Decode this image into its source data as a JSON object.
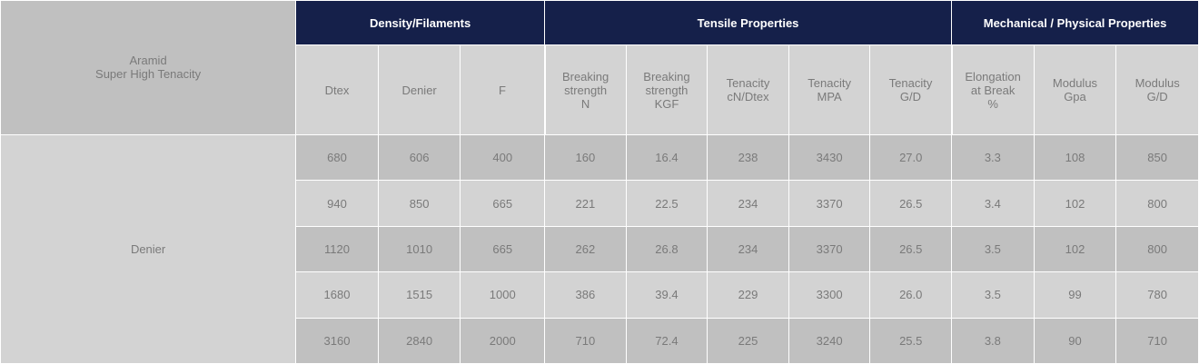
{
  "table": {
    "corner": {
      "line1": "Aramid",
      "line2": "Super High Tenacity"
    },
    "groups": {
      "density": "Density/Filaments",
      "tensile": "Tensile Properties",
      "mechanical": "Mechanical / Physical Properties"
    },
    "columns": [
      [
        "Dtex"
      ],
      [
        "Denier"
      ],
      [
        "F"
      ],
      [
        "Breaking",
        "strength",
        "N"
      ],
      [
        "Breaking",
        "strength",
        "KGF"
      ],
      [
        "Tenacity",
        "cN/Dtex"
      ],
      [
        "Tenacity",
        "MPA"
      ],
      [
        "Tenacity",
        "G/D"
      ],
      [
        "Elongation",
        "at Break",
        "%"
      ],
      [
        "Modulus",
        "Gpa"
      ],
      [
        "Modulus",
        "G/D"
      ]
    ],
    "row_label": "Denier",
    "rows": [
      [
        "680",
        "606",
        "400",
        "160",
        "16.4",
        "238",
        "3430",
        "27.0",
        "3.3",
        "108",
        "850"
      ],
      [
        "940",
        "850",
        "665",
        "221",
        "22.5",
        "234",
        "3370",
        "26.5",
        "3.4",
        "102",
        "800"
      ],
      [
        "1120",
        "1010",
        "665",
        "262",
        "26.8",
        "234",
        "3370",
        "26.5",
        "3.5",
        "102",
        "800"
      ],
      [
        "1680",
        "1515",
        "1000",
        "386",
        "39.4",
        "229",
        "3300",
        "26.0",
        "3.5",
        "99",
        "780"
      ],
      [
        "3160",
        "2840",
        "2000",
        "710",
        "72.4",
        "225",
        "3240",
        "25.5",
        "3.8",
        "90",
        "710"
      ]
    ]
  }
}
